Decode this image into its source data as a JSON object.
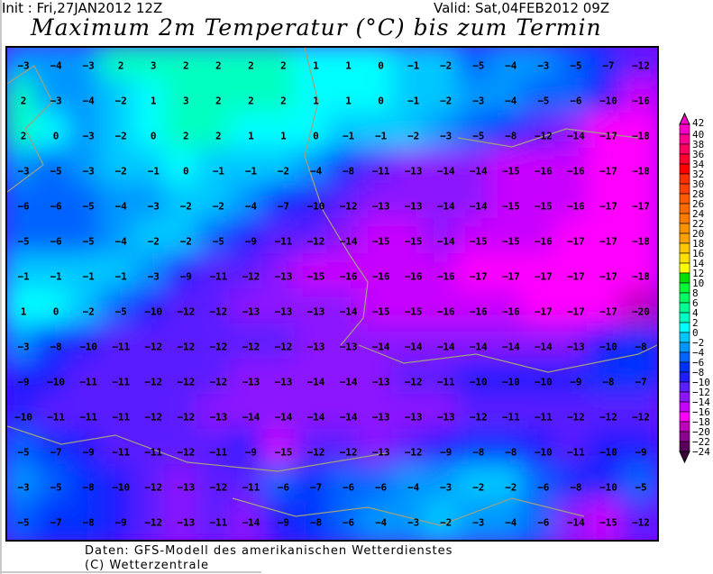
{
  "header": {
    "init": "Init : Fri,27JAN2012 12Z",
    "valid": "Valid: Sat,04FEB2012 09Z",
    "title": "Maximum 2m Temperatur (°C) bis zum Termin"
  },
  "footer": {
    "source": "Daten: GFS-Modell des amerikanischen Wetterdienstes",
    "copyright": "(C) Wetterzentrale"
  },
  "colorbar": {
    "unit": "°C",
    "levels": [
      42,
      40,
      38,
      36,
      34,
      32,
      30,
      28,
      26,
      24,
      22,
      20,
      18,
      16,
      14,
      12,
      10,
      8,
      6,
      4,
      2,
      0,
      -2,
      -4,
      -6,
      -8,
      -10,
      -12,
      -14,
      -16,
      -18,
      -20,
      -22,
      -24
    ],
    "colors": [
      "#ff00c8",
      "#ff0090",
      "#ff0060",
      "#ff0030",
      "#ff0000",
      "#ff3000",
      "#ff4000",
      "#ff5a00",
      "#ff6a00",
      "#ff7a00",
      "#ff9000",
      "#ffa000",
      "#ffc800",
      "#ffe000",
      "#ffff00",
      "#00e000",
      "#00ff30",
      "#00ff60",
      "#00ff90",
      "#00ffc0",
      "#00ffff",
      "#00c8ff",
      "#0096ff",
      "#0064ff",
      "#0030ff",
      "#1e1eff",
      "#5a1eff",
      "#8c14ff",
      "#c800ff",
      "#ff00ff",
      "#c000c0",
      "#900090",
      "#5a005a"
    ]
  },
  "map": {
    "coastline_color": "#a0a080",
    "values": [
      [
        -3,
        -4,
        -3,
        2,
        3,
        2,
        2,
        2,
        2,
        1,
        1,
        0,
        -1,
        -2,
        -5,
        -4,
        -3,
        -5,
        -7,
        -12
      ],
      [
        2,
        -3,
        -4,
        -2,
        1,
        3,
        2,
        2,
        2,
        1,
        1,
        0,
        -1,
        -2,
        -3,
        -4,
        -5,
        -6,
        -10,
        -16
      ],
      [
        2,
        0,
        -3,
        -2,
        0,
        2,
        2,
        1,
        1,
        0,
        -1,
        -1,
        -2,
        -3,
        -5,
        -8,
        -12,
        -14,
        -17,
        -18
      ],
      [
        -3,
        -5,
        -3,
        -2,
        -1,
        0,
        -1,
        -1,
        -2,
        -4,
        -8,
        -11,
        -13,
        -14,
        -14,
        -15,
        -16,
        -16,
        -17,
        -18
      ],
      [
        -6,
        -6,
        -5,
        -4,
        -3,
        -2,
        -2,
        -4,
        -7,
        -10,
        -12,
        -13,
        -13,
        -14,
        -14,
        -15,
        -15,
        -16,
        -17,
        -17
      ],
      [
        -5,
        -6,
        -5,
        -4,
        -2,
        -2,
        -5,
        -9,
        -11,
        -12,
        -14,
        -15,
        -15,
        -14,
        -15,
        -15,
        -16,
        -17,
        -17,
        -18
      ],
      [
        -1,
        -1,
        -1,
        -1,
        -3,
        -9,
        -11,
        -12,
        -13,
        -15,
        -16,
        -16,
        -16,
        -16,
        -17,
        -17,
        -17,
        -17,
        -17,
        -18
      ],
      [
        1,
        0,
        -2,
        -5,
        -10,
        -12,
        -12,
        -13,
        -13,
        -13,
        -14,
        -15,
        -15,
        -16,
        -16,
        -16,
        -17,
        -17,
        -17,
        -20
      ],
      [
        -3,
        -8,
        -10,
        -11,
        -12,
        -12,
        -12,
        -12,
        -12,
        -13,
        -13,
        -14,
        -14,
        -14,
        -14,
        -14,
        -14,
        -13,
        -10,
        -8
      ],
      [
        -9,
        -10,
        -11,
        -11,
        -12,
        -12,
        -12,
        -13,
        -13,
        -14,
        -14,
        -13,
        -12,
        -11,
        -10,
        -10,
        -10,
        -9,
        -8,
        -7
      ],
      [
        -10,
        -11,
        -11,
        -11,
        -12,
        -12,
        -13,
        -14,
        -14,
        -14,
        -14,
        -13,
        -13,
        -13,
        -12,
        -11,
        -11,
        -12,
        -12,
        -12
      ],
      [
        -5,
        -7,
        -9,
        -11,
        -11,
        -12,
        -11,
        -9,
        -15,
        -12,
        -12,
        -13,
        -12,
        -9,
        -8,
        -8,
        -10,
        -11,
        -10,
        -9
      ],
      [
        -3,
        -5,
        -8,
        -10,
        -12,
        -13,
        -12,
        -11,
        -6,
        -7,
        -6,
        -6,
        -4,
        -3,
        -2,
        -2,
        -6,
        -8,
        -10,
        -5
      ],
      [
        -5,
        -7,
        -8,
        -9,
        -12,
        -13,
        -11,
        -14,
        -9,
        -8,
        -6,
        -4,
        -3,
        -2,
        -3,
        -4,
        -6,
        -14,
        -15,
        -12
      ]
    ]
  }
}
